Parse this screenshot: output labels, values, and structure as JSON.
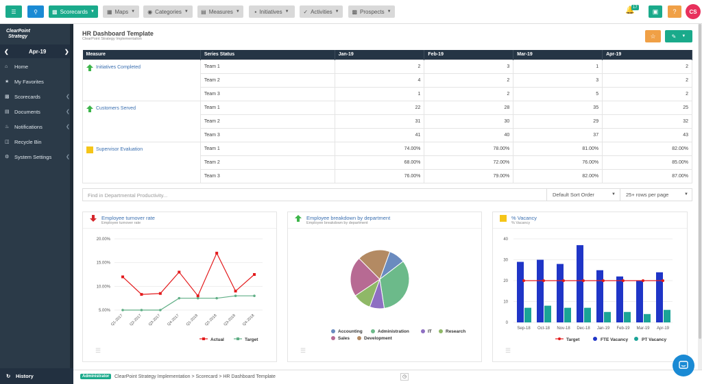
{
  "topbar": {
    "scorecards": "Scorecards",
    "maps": "Maps",
    "categories": "Categories",
    "measures": "Measures",
    "initiatives": "Initiatives",
    "activities": "Activities",
    "prospects": "Prospects",
    "notification_count": "17",
    "help": "?",
    "avatar": "CS",
    "menu_icon": "menu-icon",
    "search_icon": "search-icon"
  },
  "sidebar": {
    "logo_line1": "ClearPoint",
    "logo_line2": "Strategy",
    "period": "Apr-19",
    "items": [
      {
        "label": "Home",
        "icon": "home-icon"
      },
      {
        "label": "My Favorites",
        "icon": "star-icon"
      },
      {
        "label": "Scorecards",
        "icon": "scorecards-icon"
      },
      {
        "label": "Documents",
        "icon": "documents-icon"
      },
      {
        "label": "Notifications",
        "icon": "bell-icon"
      },
      {
        "label": "Recycle Bin",
        "icon": "trash-icon"
      },
      {
        "label": "System Settings",
        "icon": "gear-icon"
      }
    ],
    "history": "History"
  },
  "page": {
    "title": "HR Dashboard Template",
    "subtitle": "ClearPoint Strategy Implementation"
  },
  "table": {
    "headers": [
      "Measure",
      "Series Status",
      "Jan-19",
      "Feb-19",
      "Mar-19",
      "Apr-19"
    ],
    "groups": [
      {
        "measure": "Initiatives Completed",
        "status": "up",
        "rows": [
          [
            "Team 1",
            "2",
            "3",
            "1",
            "2"
          ],
          [
            "Team 2",
            "4",
            "2",
            "3",
            "2"
          ],
          [
            "Team 3",
            "1",
            "2",
            "5",
            "2"
          ]
        ]
      },
      {
        "measure": "Customers Served",
        "status": "up",
        "rows": [
          [
            "Team 1",
            "22",
            "28",
            "35",
            "25"
          ],
          [
            "Team 2",
            "31",
            "30",
            "29",
            "32"
          ],
          [
            "Team 3",
            "41",
            "40",
            "37",
            "43"
          ]
        ]
      },
      {
        "measure": "Supervisor Evaluation",
        "status": "yellow",
        "rows": [
          [
            "Team 1",
            "74.00%",
            "78.00%",
            "81.00%",
            "82.00%"
          ],
          [
            "Team 2",
            "68.00%",
            "72.00%",
            "76.00%",
            "85.00%"
          ],
          [
            "Team 3",
            "76.00%",
            "79.00%",
            "82.00%",
            "87.00%"
          ]
        ]
      }
    ]
  },
  "filter": {
    "placeholder": "Find in Departmental Productivity...",
    "sort": "Default Sort Order",
    "rows": "25+ rows per page"
  },
  "cards": [
    {
      "title": "Employee turnover rate",
      "sub": "Employee turnover rate"
    },
    {
      "title": "Employee breakdown by department",
      "sub": "Employee breakdown by department"
    },
    {
      "title": "% Vacancy",
      "sub": "% Vacancy"
    }
  ],
  "chart_data": [
    {
      "type": "line",
      "x": [
        "Q1-2017",
        "Q2-2017",
        "Q3-2017",
        "Q4-2017",
        "Q1-2018",
        "Q2-2018",
        "Q3-2018",
        "Q4-2018"
      ],
      "series": [
        {
          "name": "Actual",
          "color": "#e31a1c",
          "values": [
            12,
            8.3,
            8.5,
            13,
            8,
            17,
            9,
            12.5
          ]
        },
        {
          "name": "Target",
          "color": "#5fae85",
          "values": [
            5,
            5,
            5,
            7.5,
            7.5,
            7.5,
            8,
            8
          ]
        }
      ],
      "yticks": [
        "20.00%",
        "15.00%",
        "10.00%",
        "5.00%"
      ],
      "ylim": [
        5,
        20
      ]
    },
    {
      "type": "pie",
      "slices": [
        {
          "name": "Accounting",
          "value": 9,
          "color": "#6a8bbf"
        },
        {
          "name": "Administration",
          "value": 33,
          "color": "#6cba8a"
        },
        {
          "name": "IT",
          "value": 8,
          "color": "#8e6fc2"
        },
        {
          "name": "Research",
          "value": 10,
          "color": "#8fb867"
        },
        {
          "name": "Sales",
          "value": 22,
          "color": "#b76a93"
        },
        {
          "name": "Development",
          "value": 18,
          "color": "#b38a63"
        }
      ]
    },
    {
      "type": "bar",
      "categories": [
        "Sep-18",
        "Oct-18",
        "Nov-18",
        "Dec-18",
        "Jan-19",
        "Feb-19",
        "Mar-19",
        "Apr-19"
      ],
      "series": [
        {
          "name": "Target",
          "color": "#e31a1c",
          "values": [
            20,
            20,
            20,
            20,
            20,
            20,
            20,
            20
          ]
        },
        {
          "name": "FTE Vacancy",
          "color": "#1f35c7",
          "values": [
            29,
            30,
            28,
            37,
            25,
            22,
            20,
            24
          ]
        },
        {
          "name": "PT Vacancy",
          "color": "#1aa397",
          "values": [
            7,
            8,
            7,
            7,
            5,
            5,
            4,
            6
          ]
        }
      ],
      "yticks": [
        "40",
        "30",
        "20",
        "10",
        "0"
      ],
      "ylim": [
        0,
        40
      ]
    }
  ]
}
